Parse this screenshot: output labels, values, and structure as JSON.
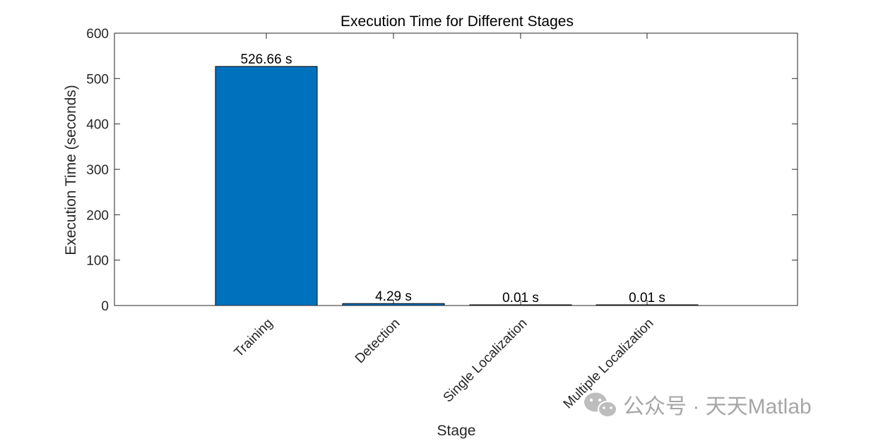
{
  "chart_data": {
    "type": "bar",
    "title": "Execution Time for Different Stages",
    "xlabel": "Stage",
    "ylabel": "Execution Time (seconds)",
    "categories": [
      "Training",
      "Detection",
      "Single Localization",
      "Multiple Localization"
    ],
    "values": [
      526.66,
      4.29,
      0.01,
      0.01
    ],
    "value_labels": [
      "526.66 s",
      "4.29 s",
      "0.01 s",
      "0.01 s"
    ],
    "ylim": [
      0,
      600
    ],
    "yticks": [
      0,
      100,
      200,
      300,
      400,
      500,
      600
    ],
    "grid": false,
    "legend": "none",
    "bar_color": "#0072BD"
  },
  "watermark": {
    "icon": "wechat-icon",
    "text": "公众号 · 天天Matlab"
  }
}
